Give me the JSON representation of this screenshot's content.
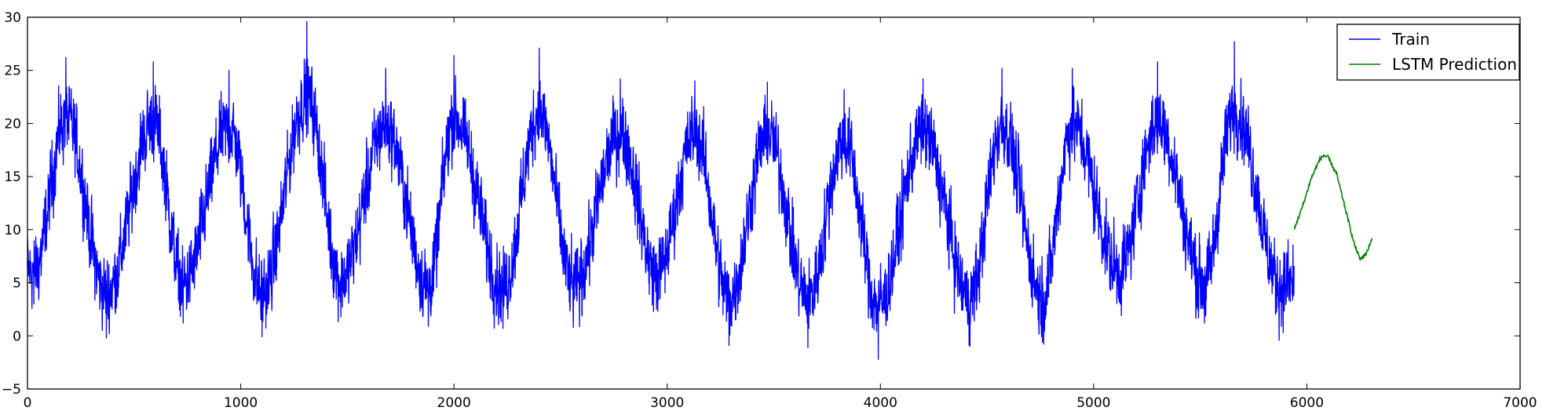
{
  "chart_data": {
    "type": "line",
    "title": "",
    "xlabel": "",
    "ylabel": "",
    "xlim": [
      0,
      7000
    ],
    "ylim": [
      -5,
      30
    ],
    "xticks": [
      0,
      1000,
      2000,
      3000,
      4000,
      5000,
      6000,
      7000
    ],
    "yticks": [
      -5,
      0,
      5,
      10,
      15,
      20,
      25,
      30
    ],
    "grid": false,
    "legend_position": "top-right",
    "series": [
      {
        "name": "Train",
        "color": "#0000ff",
        "x_start": 0,
        "x_step": 1,
        "pattern": "noisy seasonal cycle, period ~365, mean ~11, amplitude ~6, noise ~3.5",
        "peaks": [
          {
            "x": 180,
            "y": 26.2
          },
          {
            "x": 590,
            "y": 25.8
          },
          {
            "x": 945,
            "y": 25.0
          },
          {
            "x": 1310,
            "y": 29.6
          },
          {
            "x": 1680,
            "y": 25.2
          },
          {
            "x": 2000,
            "y": 26.4
          },
          {
            "x": 2400,
            "y": 27.1
          },
          {
            "x": 2780,
            "y": 24.2
          },
          {
            "x": 3130,
            "y": 24.0
          },
          {
            "x": 3470,
            "y": 23.9
          },
          {
            "x": 3830,
            "y": 23.2
          },
          {
            "x": 4200,
            "y": 24.2
          },
          {
            "x": 4570,
            "y": 25.2
          },
          {
            "x": 4900,
            "y": 25.2
          },
          {
            "x": 5300,
            "y": 25.8
          },
          {
            "x": 5660,
            "y": 27.7
          }
        ],
        "troughs": [
          {
            "x": 30,
            "y": 3.0
          },
          {
            "x": 370,
            "y": -0.2
          },
          {
            "x": 730,
            "y": 1.2
          },
          {
            "x": 1100,
            "y": -0.1
          },
          {
            "x": 1470,
            "y": 1.8
          },
          {
            "x": 1880,
            "y": 0.9
          },
          {
            "x": 2230,
            "y": 0.7
          },
          {
            "x": 2560,
            "y": 0.8
          },
          {
            "x": 2950,
            "y": 2.5
          },
          {
            "x": 3290,
            "y": -0.9
          },
          {
            "x": 3660,
            "y": -1.1
          },
          {
            "x": 3990,
            "y": -2.2
          },
          {
            "x": 4420,
            "y": -1.0
          },
          {
            "x": 4760,
            "y": -0.6
          },
          {
            "x": 5120,
            "y": 3.2
          },
          {
            "x": 5520,
            "y": 1.2
          },
          {
            "x": 5880,
            "y": 0.9
          }
        ],
        "x_end": 5940
      },
      {
        "name": "LSTM Prediction",
        "color": "#008000",
        "points": [
          [
            5940,
            10.0
          ],
          [
            5980,
            12.2
          ],
          [
            6020,
            14.8
          ],
          [
            6060,
            16.6
          ],
          [
            6080,
            17.0
          ],
          [
            6100,
            16.8
          ],
          [
            6140,
            15.2
          ],
          [
            6180,
            12.0
          ],
          [
            6220,
            8.8
          ],
          [
            6250,
            7.2
          ],
          [
            6280,
            7.8
          ],
          [
            6305,
            9.2
          ]
        ]
      }
    ]
  }
}
